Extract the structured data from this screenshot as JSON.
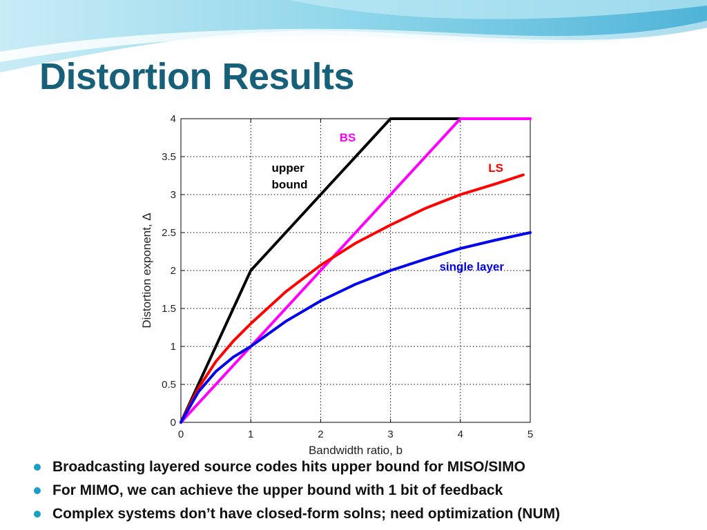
{
  "slide": {
    "title": "Distortion Results",
    "bullets": [
      "Broadcasting layered source codes hits upper bound for MISO/SIMO",
      "For MIMO, we can achieve the upper bound with 1 bit of feedback",
      "Complex systems don’t have closed-form solns; need optimization (NUM)"
    ],
    "colors": {
      "title": "#17607a",
      "bullet": "#1aa0c8",
      "swoosh": "#7fd0e6"
    }
  },
  "chart_data": {
    "type": "line",
    "xlabel": "Bandwidth ratio, b",
    "ylabel": "Distortion exponent, Δ",
    "xlim": [
      0,
      5
    ],
    "ylim": [
      0,
      4
    ],
    "xticks": [
      "0",
      "1",
      "2",
      "3",
      "4",
      "5"
    ],
    "yticks": [
      "0",
      "0.5",
      "1",
      "1.5",
      "2",
      "2.5",
      "3",
      "3.5",
      "4"
    ],
    "grid": true,
    "series": [
      {
        "name": "upper bound",
        "color": "#000000",
        "x": [
          0,
          1,
          3,
          4
        ],
        "y": [
          0,
          2,
          4,
          4
        ]
      },
      {
        "name": "BS",
        "color": "#ff00ff",
        "x": [
          0,
          4,
          5
        ],
        "y": [
          0,
          4,
          4
        ]
      },
      {
        "name": "LS",
        "color": "#ff0000",
        "x": [
          0,
          0.25,
          0.5,
          0.75,
          1,
          1.5,
          2,
          2.5,
          3,
          3.5,
          4,
          4.5,
          4.9
        ],
        "y": [
          0,
          0.45,
          0.8,
          1.07,
          1.3,
          1.72,
          2.07,
          2.36,
          2.6,
          2.82,
          3.0,
          3.14,
          3.26
        ]
      },
      {
        "name": "single layer",
        "color": "#0000ee",
        "x": [
          0,
          0.25,
          0.5,
          0.75,
          1,
          1.5,
          2,
          2.5,
          3,
          3.5,
          4,
          4.5,
          5
        ],
        "y": [
          0,
          0.4,
          0.67,
          0.86,
          1.0,
          1.33,
          1.6,
          1.82,
          2.0,
          2.15,
          2.29,
          2.4,
          2.5
        ]
      }
    ],
    "annotations": [
      {
        "text": "upper",
        "series": "upper bound",
        "color": "#000000",
        "x": 1.3,
        "y": 3.3
      },
      {
        "text": "bound",
        "series": "upper bound",
        "color": "#000000",
        "x": 1.3,
        "y": 3.08
      },
      {
        "text": "BS",
        "series": "BS",
        "color": "#ff00ff",
        "x": 2.27,
        "y": 3.7
      },
      {
        "text": "LS",
        "series": "LS",
        "color": "#ff0000",
        "x": 4.4,
        "y": 3.3
      },
      {
        "text": "single layer",
        "series": "single layer",
        "color": "#0000ee",
        "x": 3.7,
        "y": 2.0
      }
    ]
  }
}
